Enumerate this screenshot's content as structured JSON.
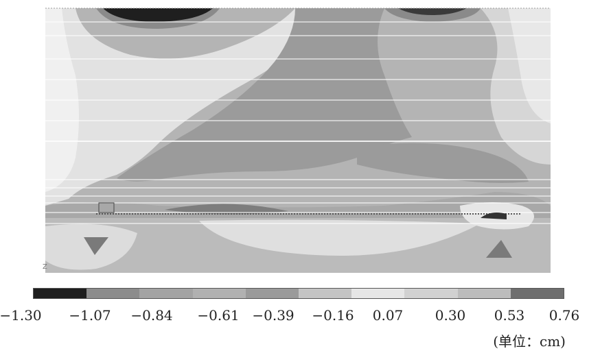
{
  "legend": {
    "colors": [
      "#1e1e1e",
      "#8c8c8c",
      "#a3a3a3",
      "#b1b1b1",
      "#9a9a9a",
      "#c4c4c4",
      "#e6e6e6",
      "#d1d1d1",
      "#bcbcbc",
      "#6e6e6e"
    ],
    "ticks": [
      "−1.30",
      "−1.07",
      "−0.84",
      "−0.61",
      "−0.39",
      "−0.16",
      "0.07",
      "0.30",
      "0.53",
      "0.76"
    ]
  },
  "unit_label": "(单位：cm)",
  "axis_glyph": "Z"
}
